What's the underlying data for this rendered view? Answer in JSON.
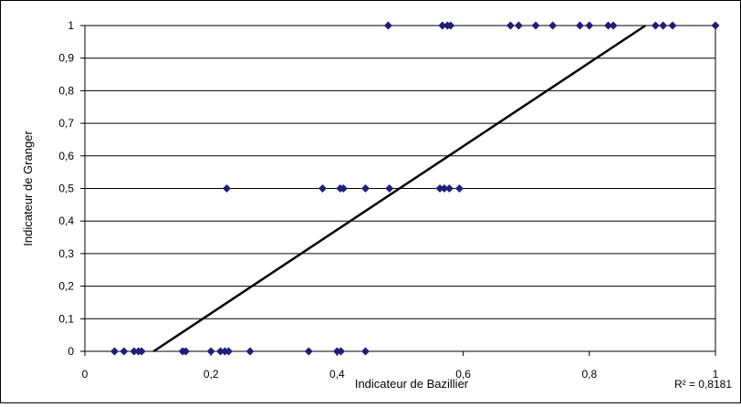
{
  "chart_data": {
    "type": "scatter",
    "title": "",
    "xlabel": "Indicateur de Bazillier",
    "ylabel": "Indicateur de Granger",
    "xlim": [
      0,
      1
    ],
    "ylim": [
      0,
      1
    ],
    "x_ticks": [
      "0",
      "0,2",
      "0,4",
      "0,6",
      "0,8",
      "1"
    ],
    "x_tick_values": [
      0,
      0.2,
      0.4,
      0.6,
      0.8,
      1
    ],
    "y_ticks": [
      "0",
      "0,1",
      "0,2",
      "0,3",
      "0,4",
      "0,5",
      "0,6",
      "0,7",
      "0,8",
      "0,9",
      "1"
    ],
    "y_tick_values": [
      0,
      0.1,
      0.2,
      0.3,
      0.4,
      0.5,
      0.6,
      0.7,
      0.8,
      0.9,
      1
    ],
    "grid": "horizontal",
    "legend": "none",
    "marker_color": "#1f1f7a",
    "trendline_color": "#000000",
    "series": [
      {
        "points": [
          [
            0.047,
            0
          ],
          [
            0.062,
            0
          ],
          [
            0.078,
            0
          ],
          [
            0.085,
            0
          ],
          [
            0.09,
            0
          ],
          [
            0.155,
            0
          ],
          [
            0.16,
            0
          ],
          [
            0.2,
            0
          ],
          [
            0.215,
            0
          ],
          [
            0.222,
            0
          ],
          [
            0.228,
            0
          ],
          [
            0.262,
            0
          ],
          [
            0.355,
            0
          ],
          [
            0.4,
            0
          ],
          [
            0.406,
            0
          ],
          [
            0.445,
            0
          ],
          [
            0.225,
            0.5
          ],
          [
            0.377,
            0.5
          ],
          [
            0.405,
            0.5
          ],
          [
            0.41,
            0.5
          ],
          [
            0.445,
            0.5
          ],
          [
            0.483,
            0.5
          ],
          [
            0.563,
            0.5
          ],
          [
            0.57,
            0.5
          ],
          [
            0.578,
            0.5
          ],
          [
            0.594,
            0.5
          ],
          [
            0.481,
            1
          ],
          [
            0.567,
            1
          ],
          [
            0.575,
            1
          ],
          [
            0.58,
            1
          ],
          [
            0.675,
            1
          ],
          [
            0.688,
            1
          ],
          [
            0.715,
            1
          ],
          [
            0.742,
            1
          ],
          [
            0.785,
            1
          ],
          [
            0.8,
            1
          ],
          [
            0.83,
            1
          ],
          [
            0.838,
            1
          ],
          [
            0.905,
            1
          ],
          [
            0.917,
            1
          ],
          [
            0.932,
            1
          ],
          [
            1.0,
            1
          ]
        ]
      }
    ],
    "trendline": {
      "x": [
        0.109,
        0.889
      ],
      "y": [
        0,
        1
      ]
    },
    "r2_label": "R² = 0,8181"
  }
}
